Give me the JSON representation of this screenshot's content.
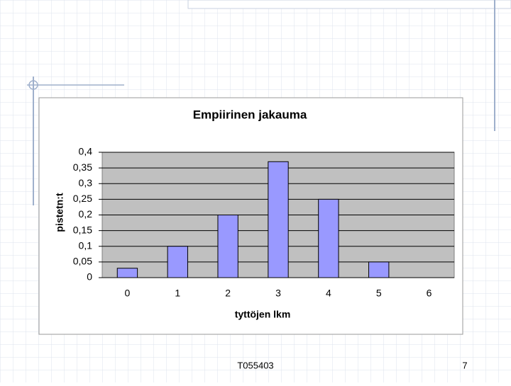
{
  "chart_data": {
    "type": "bar",
    "title": "Empiirinen jakauma",
    "x_label": "tyttöjen lkm",
    "y_label": "pistetn:t",
    "categories": [
      "0",
      "1",
      "2",
      "3",
      "4",
      "5",
      "6"
    ],
    "values": [
      0.03,
      0.1,
      0.2,
      0.37,
      0.25,
      0.05,
      0
    ],
    "color": "#9999ff",
    "ylim": [
      0,
      0.4
    ],
    "yticks": [
      0,
      {
        "value": 0.05,
        "label": "0,05"
      },
      {
        "value": 0.1,
        "label": "0,1"
      },
      {
        "value": 0.15,
        "label": "0,15"
      },
      {
        "value": 0.2,
        "label": "0,2"
      },
      {
        "value": 0.25,
        "label": "0,25"
      },
      {
        "value": 0.3,
        "label": "0,3"
      },
      {
        "value": 0.35,
        "label": "0,35"
      },
      {
        "value": 0.4,
        "label": "0,4"
      }
    ],
    "grid": true
  },
  "footer": {
    "code": "T055403",
    "page": "7"
  }
}
